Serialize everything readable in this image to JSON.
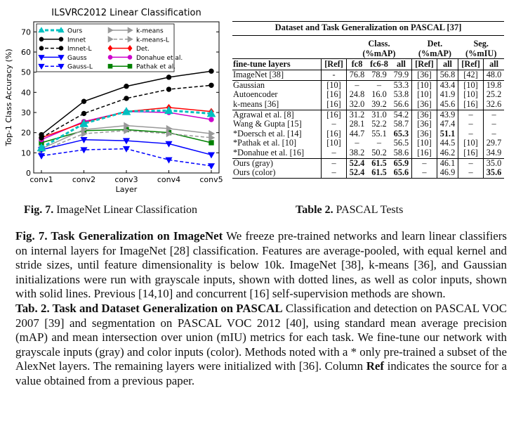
{
  "figure": {
    "caption_label": "Fig. 7.",
    "caption_text": "ImageNet Linear Classification"
  },
  "chart_data": {
    "type": "line",
    "title": "ILSVRC2012 Linear Classification",
    "xlabel": "Layer",
    "ylabel": "Top-1 Class Accuracy (%)",
    "categories": [
      "conv1",
      "conv2",
      "conv3",
      "conv4",
      "conv5"
    ],
    "ylim": [
      0,
      75
    ],
    "yticks": [
      0,
      10,
      20,
      30,
      40,
      50,
      60,
      70
    ],
    "series": [
      {
        "name": "Ours",
        "color": "#00c0c0",
        "marker": "triangle-up",
        "dash": "dashed",
        "values": [
          12.5,
          24.5,
          30.5,
          31.0,
          29.5
        ]
      },
      {
        "name": "Imnet",
        "color": "#000000",
        "marker": "circle",
        "dash": "solid",
        "values": [
          19.0,
          35.5,
          43.0,
          47.5,
          50.5
        ]
      },
      {
        "name": "Imnet-L",
        "color": "#000000",
        "marker": "circle",
        "dash": "dashed",
        "values": [
          17.5,
          29.5,
          37.0,
          41.5,
          43.5
        ]
      },
      {
        "name": "Gauss",
        "color": "#0000ff",
        "marker": "triangle-down",
        "dash": "solid",
        "values": [
          11.5,
          16.5,
          16.0,
          14.5,
          9.0
        ]
      },
      {
        "name": "Gauss-L",
        "color": "#0000ff",
        "marker": "triangle-down",
        "dash": "dashed",
        "values": [
          8.5,
          11.5,
          12.0,
          6.5,
          3.5
        ]
      },
      {
        "name": "k-means",
        "color": "#999999",
        "marker": "triangle-right",
        "dash": "solid",
        "values": [
          12.0,
          21.5,
          23.5,
          22.0,
          19.5
        ]
      },
      {
        "name": "k-means-L",
        "color": "#999999",
        "marker": "triangle-right",
        "dash": "dashed",
        "values": [
          11.0,
          19.5,
          21.0,
          19.5,
          17.5
        ]
      },
      {
        "name": "Det.",
        "color": "#ff0000",
        "marker": "diamond",
        "dash": "solid",
        "values": [
          17.5,
          25.0,
          30.5,
          32.5,
          30.5
        ]
      },
      {
        "name": "Donahue et al.",
        "color": "#cc00cc",
        "marker": "circle",
        "dash": "solid",
        "values": [
          16.5,
          25.5,
          30.5,
          30.0,
          26.5
        ]
      },
      {
        "name": "Pathak et al.",
        "color": "#008000",
        "marker": "square",
        "dash": "solid",
        "values": [
          15.0,
          21.0,
          21.5,
          20.0,
          15.0
        ]
      }
    ],
    "legend": "top-left, two columns"
  },
  "table": {
    "caption_label": "Table 2.",
    "caption_text": "PASCAL Tests",
    "title": "Dataset and Task Generalization on PASCAL [37]",
    "groups": {
      "class": "Class.",
      "class_unit": "(%mAP)",
      "det": "Det.",
      "det_unit": "(%mAP)",
      "seg": "Seg.",
      "seg_unit": "(%mIU)"
    },
    "headers": [
      "fine-tune layers",
      "[Ref]",
      "fc8",
      "fc6-8",
      "all",
      "[Ref]",
      "all",
      "[Ref]",
      "all"
    ],
    "rows": [
      [
        "ImageNet [38]",
        "-",
        "76.8",
        "78.9",
        "79.9",
        "[36]",
        "56.8",
        "[42]",
        "48.0"
      ],
      [
        "Gaussian",
        "[10]",
        "–",
        "–",
        "53.3",
        "[10]",
        "43.4",
        "[10]",
        "19.8"
      ],
      [
        "Autoencoder",
        "[16]",
        "24.8",
        "16.0",
        "53.8",
        "[10]",
        "41.9",
        "[10]",
        "25.2"
      ],
      [
        "k-means [36]",
        "[16]",
        "32.0",
        "39.2",
        "56.6",
        "[36]",
        "45.6",
        "[16]",
        "32.6"
      ],
      [
        "Agrawal et al. [8]",
        "[16]",
        "31.2",
        "31.0",
        "54.2",
        "[36]",
        "43.9",
        "–",
        "–"
      ],
      [
        "Wang & Gupta [15]",
        "–",
        "28.1",
        "52.2",
        "58.7",
        "[36]",
        "47.4",
        "–",
        "–"
      ],
      [
        "*Doersch et al. [14]",
        "[16]",
        "44.7",
        "55.1",
        "65.3",
        "[36]",
        "51.1",
        "–",
        "–"
      ],
      [
        "*Pathak et al. [10]",
        "[10]",
        "–",
        "–",
        "56.5",
        "[10]",
        "44.5",
        "[10]",
        "29.7"
      ],
      [
        "*Donahue et al. [16]",
        "–",
        "38.2",
        "50.2",
        "58.6",
        "[16]",
        "46.2",
        "[16]",
        "34.9"
      ],
      [
        "Ours (gray)",
        "–",
        "52.4",
        "61.5",
        "65.9",
        "–",
        "46.1",
        "–",
        "35.0"
      ],
      [
        "Ours (color)",
        "–",
        "52.4",
        "61.5",
        "65.6",
        "–",
        "46.9",
        "–",
        "35.6"
      ]
    ]
  },
  "text": {
    "fig_lead": "Fig. 7. Task Generalization on ImageNet",
    "fig_body": " We freeze pre-trained networks and learn linear classifiers on internal layers for ImageNet [28] classification. Features are average-pooled, with equal kernel and stride sizes, until feature dimensionality is below 10k. ImageNet [38], k-means [36], and Gaussian initializations were run with grayscale inputs, shown with dotted lines, as well as color inputs, shown with solid lines. Previous [14,10] and concurrent [16] self-supervision methods are shown.",
    "tab_lead": "Tab. 2. Task and Dataset Generalization on PASCAL",
    "tab_body_1": " Classification and detection on PASCAL VOC 2007 [39] and segmentation on PASCAL VOC 2012 [40], using standard mean average precision (mAP) and mean intersection over union (mIU) metrics for each task. We fine-tune our network with grayscale inputs (gray) and color inputs (color). Methods noted with a * only pre-trained a subset of the AlexNet layers. The remaining layers were initialized with [36]. Column ",
    "tab_ref_word": "Ref",
    "tab_body_2": " indicates the source for a value obtained from a previous paper."
  }
}
